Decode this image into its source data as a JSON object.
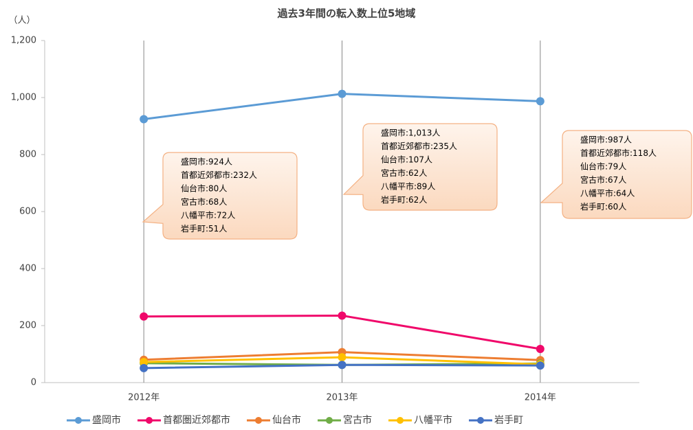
{
  "chart_data": {
    "type": "line",
    "title": "過去3年間の転入数上位5地域",
    "y_label": "（人）",
    "categories": [
      "2012年",
      "2013年",
      "2014年"
    ],
    "ylim": [
      0,
      1200
    ],
    "yticks": [
      0,
      200,
      400,
      600,
      800,
      {
        "value": 1000,
        "label": "1,000"
      },
      {
        "value": 1200,
        "label": "1,200"
      }
    ],
    "x_grid": true,
    "legend": "bottom",
    "series": [
      {
        "name": "盛岡市",
        "color": "#5b9bd5",
        "values": [
          924,
          1013,
          987
        ],
        "value_labels": [
          "盛岡市:924人",
          "盛岡市:1,013人",
          "盛岡市:987人"
        ]
      },
      {
        "name": "首都圏近郊都市",
        "color": "#f0086a",
        "values": [
          232,
          235,
          118
        ],
        "value_labels": [
          "首都近郊都市:232人",
          "首都近郊都市:235人",
          "首都近郊都市:118人"
        ]
      },
      {
        "name": "仙台市",
        "color": "#ed7d31",
        "values": [
          80,
          107,
          79
        ],
        "value_labels": [
          "仙台市:80人",
          "仙台市:107人",
          "仙台市:79人"
        ]
      },
      {
        "name": "宮古市",
        "color": "#70ad47",
        "values": [
          68,
          62,
          67
        ],
        "value_labels": [
          "宮古市:68人",
          "宮古市:62人",
          "宮古市:67人"
        ]
      },
      {
        "name": "八幡平市",
        "color": "#ffc000",
        "values": [
          72,
          89,
          64
        ],
        "value_labels": [
          "八幡平市:72人",
          "八幡平市:89人",
          "八幡平市:64人"
        ]
      },
      {
        "name": "岩手町",
        "color": "#4472c4",
        "values": [
          51,
          62,
          60
        ],
        "value_labels": [
          "岩手町:51人",
          "岩手町:62人",
          "岩手町:60人"
        ]
      }
    ]
  }
}
